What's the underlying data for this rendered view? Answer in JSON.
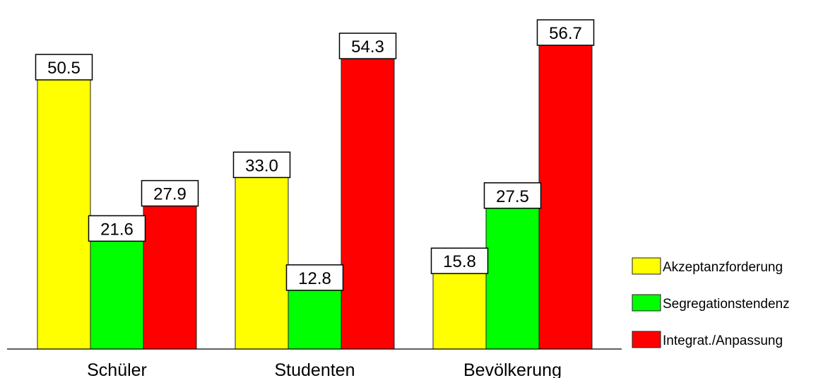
{
  "chart_data": {
    "type": "bar",
    "categories": [
      "Schüler",
      "Studenten",
      "Bevölkerung"
    ],
    "series": [
      {
        "name": "Akzeptanzforderung",
        "color": "#ffff00",
        "values": [
          50.5,
          33.0,
          15.8
        ]
      },
      {
        "name": "Segregationstendenz",
        "color": "#00ff00",
        "values": [
          21.6,
          12.8,
          27.5
        ]
      },
      {
        "name": "Integrat./Anpassung",
        "color": "#ff0000",
        "values": [
          27.9,
          54.3,
          56.7
        ]
      }
    ],
    "value_labels": [
      [
        "50.5",
        "21.6",
        "27.9"
      ],
      [
        "33.0",
        "12.8",
        "54.3"
      ],
      [
        "15.8",
        "27.5",
        "56.7"
      ]
    ],
    "title": "",
    "xlabel": "",
    "ylabel": "",
    "ylim": [
      0,
      60
    ],
    "grid": false,
    "legend_position": "right"
  }
}
